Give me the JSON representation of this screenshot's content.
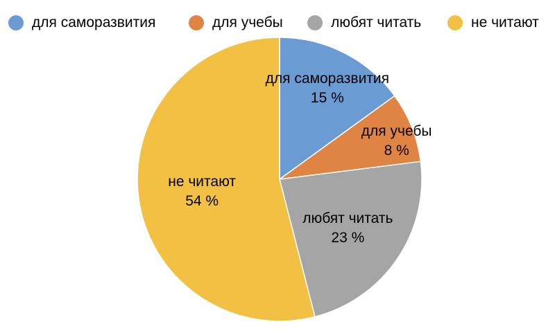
{
  "chart_data": {
    "type": "pie",
    "unit": "%",
    "legend_position": "top",
    "categories": [
      "для саморазвития",
      "для учебы",
      "любят читать",
      "не читают"
    ],
    "values": [
      15,
      8,
      23,
      54
    ],
    "colors": [
      "#6a9bd3",
      "#e08444",
      "#a5a5a5",
      "#f2c144"
    ],
    "data_labels": [
      "15 %",
      "8 %",
      "23 %",
      "54 %"
    ]
  }
}
